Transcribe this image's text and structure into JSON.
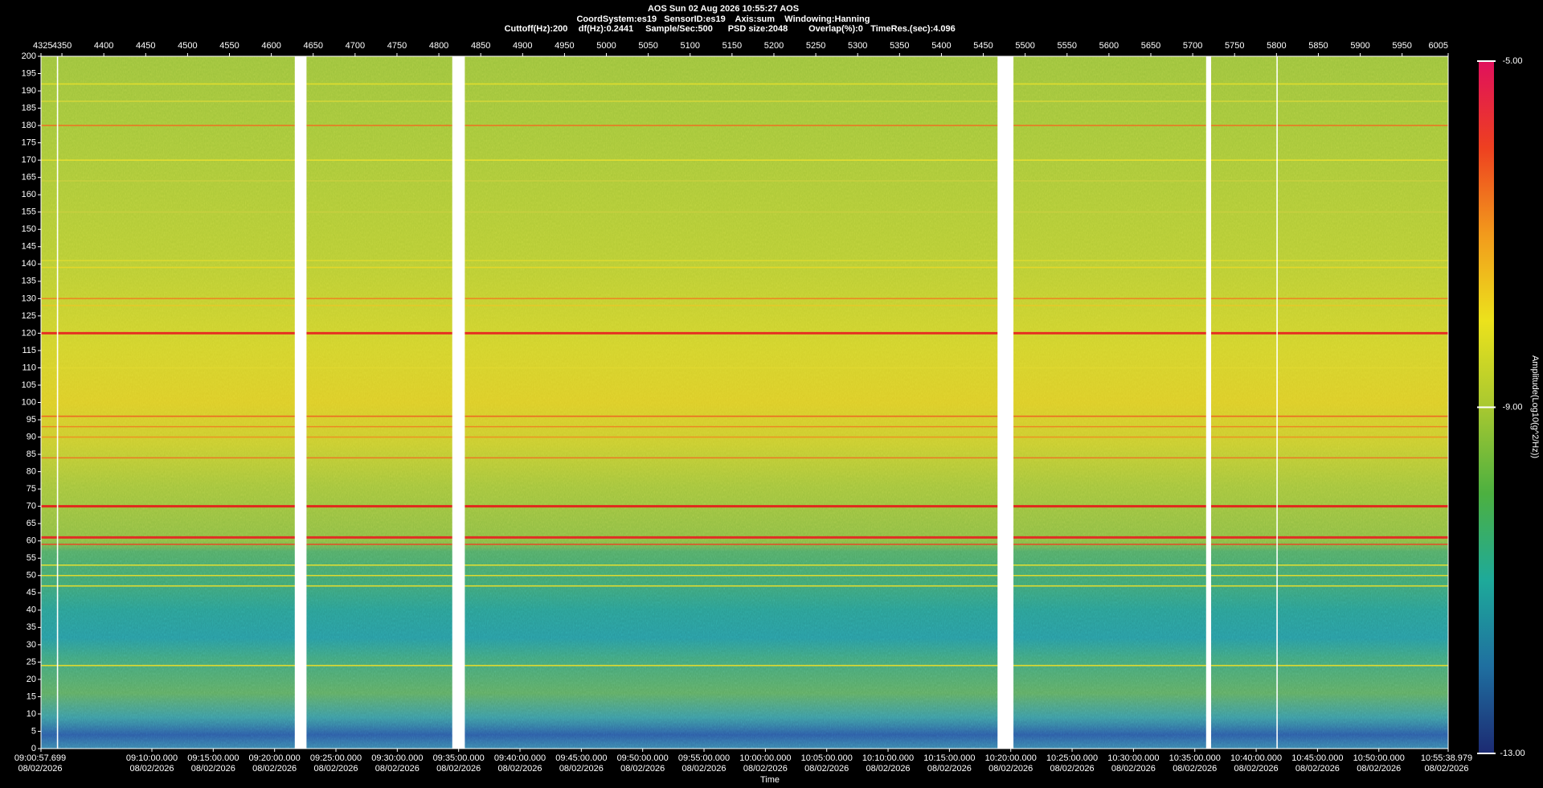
{
  "chart_data": {
    "type": "spectrogram",
    "header": [
      "AOS  Sun 02 Aug 2026 10:55:27  AOS",
      "CoordSystem:es19   SensorID:es19    Axis:sum    Windowing:Hanning"
    ],
    "params": [
      "Cuttoff(Hz):200",
      "df(Hz):0.2441",
      "Sample/Sec:500",
      "PSD size:2048",
      "Overlap(%):0",
      "TimeRes.(sec):4.096"
    ],
    "xlim": [
      4325,
      6005
    ],
    "xticks": [
      4325,
      4350,
      4400,
      4450,
      4500,
      4550,
      4600,
      4650,
      4700,
      4750,
      4800,
      4850,
      4900,
      4950,
      5000,
      5050,
      5100,
      5150,
      5200,
      5250,
      5300,
      5350,
      5400,
      5450,
      5500,
      5550,
      5600,
      5650,
      5700,
      5750,
      5800,
      5850,
      5900,
      5950,
      6005
    ],
    "ylim": [
      0,
      200
    ],
    "yticks": [
      0,
      5,
      10,
      15,
      20,
      25,
      30,
      35,
      40,
      45,
      50,
      55,
      60,
      65,
      70,
      75,
      80,
      85,
      90,
      95,
      100,
      105,
      110,
      115,
      120,
      125,
      130,
      135,
      140,
      145,
      150,
      155,
      160,
      165,
      170,
      175,
      180,
      185,
      190,
      195,
      200
    ],
    "time_label": "Time",
    "time_lim": [
      32457.699,
      39338.979
    ],
    "time_date": "08/02/2026",
    "time_ticks": [
      {
        "value": 32457.699,
        "label": "09:00:57.699"
      },
      {
        "value": 33000,
        "label": "09:10:00.000"
      },
      {
        "value": 33300,
        "label": "09:15:00.000"
      },
      {
        "value": 33600,
        "label": "09:20:00.000"
      },
      {
        "value": 33900,
        "label": "09:25:00.000"
      },
      {
        "value": 34200,
        "label": "09:30:00.000"
      },
      {
        "value": 34500,
        "label": "09:35:00.000"
      },
      {
        "value": 34800,
        "label": "09:40:00.000"
      },
      {
        "value": 35100,
        "label": "09:45:00.000"
      },
      {
        "value": 35400,
        "label": "09:50:00.000"
      },
      {
        "value": 35700,
        "label": "09:55:00.000"
      },
      {
        "value": 36000,
        "label": "10:00:00.000"
      },
      {
        "value": 36300,
        "label": "10:05:00.000"
      },
      {
        "value": 36600,
        "label": "10:10:00.000"
      },
      {
        "value": 36900,
        "label": "10:15:00.000"
      },
      {
        "value": 37200,
        "label": "10:20:00.000"
      },
      {
        "value": 37500,
        "label": "10:25:00.000"
      },
      {
        "value": 37800,
        "label": "10:30:00.000"
      },
      {
        "value": 38100,
        "label": "10:35:00.000"
      },
      {
        "value": 38400,
        "label": "10:40:00.000"
      },
      {
        "value": 38700,
        "label": "10:45:00.000"
      },
      {
        "value": 39000,
        "label": "10:50:00.000"
      },
      {
        "value": 39338.979,
        "label": "10:55:38.979"
      }
    ],
    "colorbar_label": "Amplitude(Log10(g^2/Hz))",
    "clim": [
      -13,
      -5
    ],
    "cticks": [
      {
        "value": -5,
        "label": "-5.00"
      },
      {
        "value": -9,
        "label": "-9.00"
      },
      {
        "value": -13,
        "label": "-13.00"
      }
    ],
    "colormap": [
      "#1c2a72",
      "#1f6fa0",
      "#1eaa9a",
      "#4cb040",
      "#a8c830",
      "#ece21c",
      "#f29a1c",
      "#ee4020",
      "#e0105c"
    ],
    "lines": [
      {
        "freq": 192,
        "color": "#e6e02a"
      },
      {
        "freq": 187,
        "color": "#d6d83a"
      },
      {
        "freq": 180,
        "color": "#f07020"
      },
      {
        "freq": 170,
        "color": "#e8e030"
      },
      {
        "freq": 164,
        "color": "#c8d040"
      },
      {
        "freq": 155,
        "color": "#c8d040"
      },
      {
        "freq": 141,
        "color": "#e0dc30"
      },
      {
        "freq": 139,
        "color": "#e8d828"
      },
      {
        "freq": 130,
        "color": "#f08020"
      },
      {
        "freq": 128,
        "color": "#e8c828"
      },
      {
        "freq": 120,
        "color": "#e82020"
      },
      {
        "freq": 110,
        "color": "#e0d830"
      },
      {
        "freq": 96,
        "color": "#f06020"
      },
      {
        "freq": 93,
        "color": "#f08020"
      },
      {
        "freq": 90,
        "color": "#f09020"
      },
      {
        "freq": 84,
        "color": "#f07020"
      },
      {
        "freq": 70,
        "color": "#e81818"
      },
      {
        "freq": 61,
        "color": "#e82020"
      },
      {
        "freq": 59,
        "color": "#f04020"
      },
      {
        "freq": 53,
        "color": "#e8e030"
      },
      {
        "freq": 50,
        "color": "#f0e028"
      },
      {
        "freq": 47,
        "color": "#f0e028"
      },
      {
        "freq": 24,
        "color": "#f0e028"
      }
    ],
    "gaps": [
      [
        4344,
        4345.5
      ],
      [
        4628,
        4642
      ],
      [
        4816,
        4831
      ],
      [
        5467,
        5486
      ],
      [
        5716,
        5722
      ],
      [
        5800,
        5801.5
      ]
    ]
  }
}
